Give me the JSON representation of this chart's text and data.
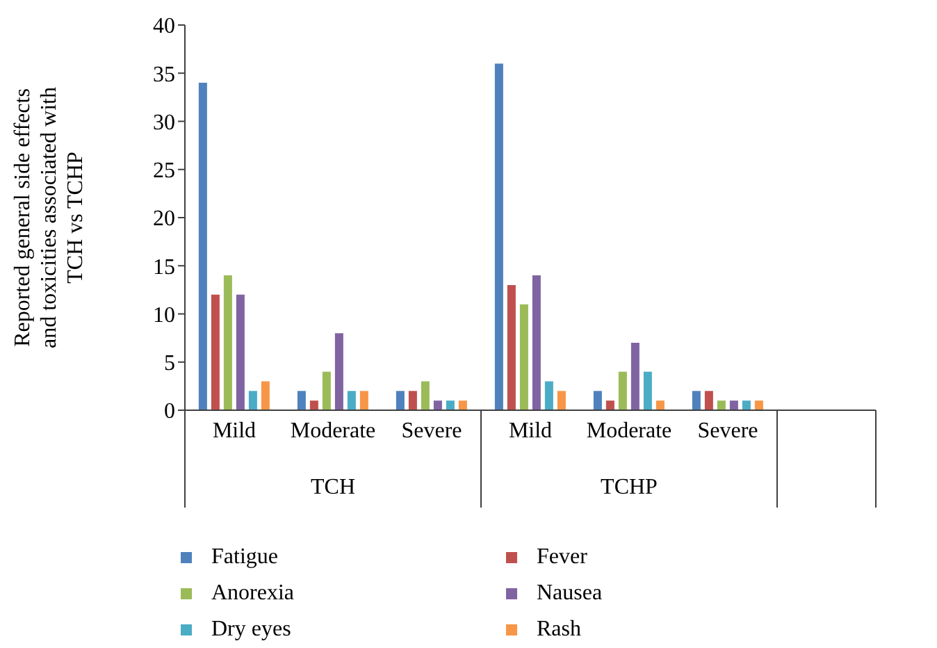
{
  "chart_data": {
    "type": "bar",
    "ylabel": "Reported general side effects and toxicities associated with TCH vs TCHP",
    "categories": [
      "Mild",
      "Moderate",
      "Severe",
      "Mild",
      "Moderate",
      "Severe",
      null
    ],
    "annotations": [
      "TCH",
      "TCHP"
    ],
    "series": [
      {
        "name": "Fatigue",
        "color": "#4f81bd",
        "values": [
          34,
          2,
          2,
          36,
          2,
          2,
          null
        ]
      },
      {
        "name": "Fever",
        "color": "#c0504d",
        "values": [
          12,
          1,
          2,
          13,
          1,
          2,
          null
        ]
      },
      {
        "name": "Anorexia",
        "color": "#9bbb59",
        "values": [
          14,
          4,
          3,
          11,
          4,
          1,
          null
        ]
      },
      {
        "name": "Nausea",
        "color": "#8064a2",
        "values": [
          12,
          8,
          1,
          14,
          7,
          1,
          null
        ]
      },
      {
        "name": "Dry eyes",
        "color": "#4bacc6",
        "values": [
          2,
          2,
          1,
          3,
          4,
          1,
          null
        ]
      },
      {
        "name": "Rash",
        "color": "#f79646",
        "values": [
          3,
          2,
          1,
          2,
          1,
          1,
          null
        ]
      }
    ],
    "ylim": [
      0,
      40
    ],
    "yticks": [
      0,
      5,
      10,
      15,
      20,
      25,
      30,
      35,
      40
    ],
    "grid": false,
    "legend": "bottom"
  }
}
